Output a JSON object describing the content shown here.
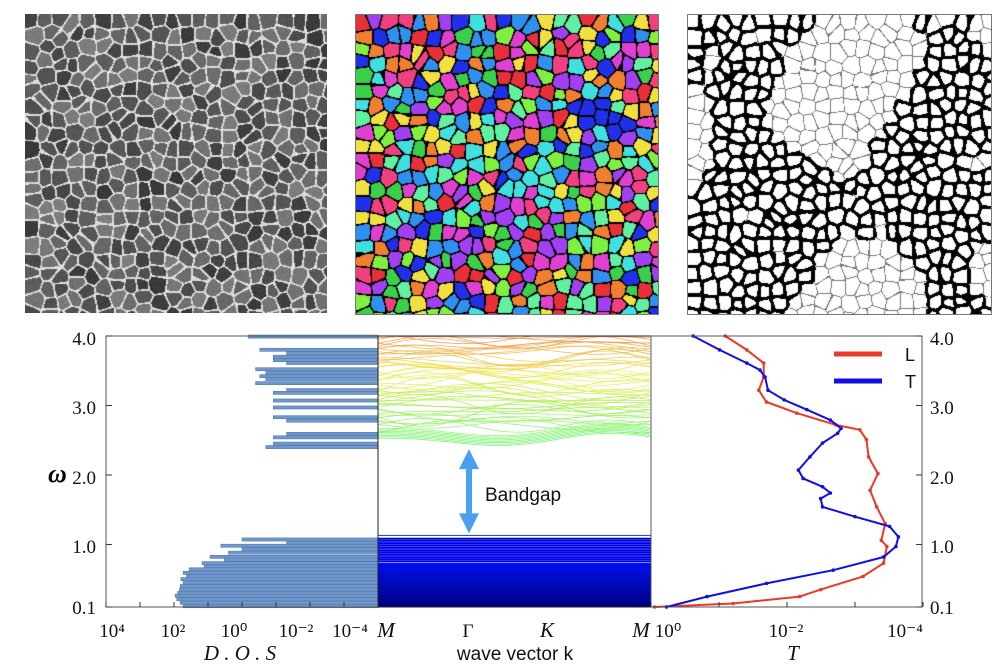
{
  "figure": {
    "y_axis_label": "ω",
    "y_ticks": [
      "4.0",
      "3.0",
      "2.0",
      "1.0",
      "0.1"
    ]
  },
  "chart_data": [
    {
      "type": "bar",
      "orientation": "horizontal",
      "xlabel": "D . O . S",
      "x_scale": "log",
      "xlim": [
        10000,
        0.0001
      ],
      "x_ticks": [
        "10⁴",
        "10²",
        "10⁰",
        "10⁻²",
        "10⁻⁴"
      ],
      "ylabel": "ω",
      "ylim": [
        0.1,
        4.0
      ],
      "bar_color": "#6f97c9",
      "bars": [
        {
          "omega": 3.99,
          "dos": 0.66
        },
        {
          "omega": 3.8,
          "dos": 0.3
        },
        {
          "omega": 3.75,
          "dos": 0.049
        },
        {
          "omega": 3.7,
          "dos": 0.12
        },
        {
          "omega": 3.65,
          "dos": 0.12
        },
        {
          "omega": 3.61,
          "dos": 0.049
        },
        {
          "omega": 3.52,
          "dos": 0.4
        },
        {
          "omega": 3.47,
          "dos": 0.2
        },
        {
          "omega": 3.42,
          "dos": 0.3
        },
        {
          "omega": 3.38,
          "dos": 0.2
        },
        {
          "omega": 3.32,
          "dos": 0.4
        },
        {
          "omega": 3.22,
          "dos": 0.049
        },
        {
          "omega": 3.18,
          "dos": 0.12
        },
        {
          "omega": 3.07,
          "dos": 0.12
        },
        {
          "omega": 2.97,
          "dos": 0.12
        },
        {
          "omega": 2.83,
          "dos": 0.12
        },
        {
          "omega": 2.78,
          "dos": 0.049
        },
        {
          "omega": 2.59,
          "dos": 0.049
        },
        {
          "omega": 2.54,
          "dos": 0.12
        },
        {
          "omega": 2.45,
          "dos": 0.12
        },
        {
          "omega": 2.4,
          "dos": 0.2
        },
        {
          "omega": 1.07,
          "dos": 1.0
        },
        {
          "omega": 1.02,
          "dos": 0.049
        },
        {
          "omega": 0.98,
          "dos": 4.2
        },
        {
          "omega": 0.93,
          "dos": 1.0
        },
        {
          "omega": 0.88,
          "dos": 2.5
        },
        {
          "omega": 0.82,
          "dos": 8.7
        },
        {
          "omega": 0.78,
          "dos": 3.3
        },
        {
          "omega": 0.73,
          "dos": 15
        },
        {
          "omega": 0.68,
          "dos": 13
        },
        {
          "omega": 0.64,
          "dos": 36
        },
        {
          "omega": 0.59,
          "dos": 54
        },
        {
          "omega": 0.54,
          "dos": 43
        },
        {
          "omega": 0.5,
          "dos": 63
        },
        {
          "omega": 0.45,
          "dos": 54
        },
        {
          "omega": 0.4,
          "dos": 66
        },
        {
          "omega": 0.35,
          "dos": 69
        },
        {
          "omega": 0.3,
          "dos": 79
        },
        {
          "omega": 0.26,
          "dos": 93
        },
        {
          "omega": 0.21,
          "dos": 83
        },
        {
          "omega": 0.16,
          "dos": 66
        },
        {
          "omega": 0.11,
          "dos": 54
        }
      ]
    },
    {
      "type": "line",
      "subtype": "band-structure",
      "xlabel": "wave vector k",
      "x_ticks": [
        "M",
        "Γ",
        "K",
        "M"
      ],
      "ylim": [
        0.1,
        4.0
      ],
      "lower_bands_range": [
        0.1,
        1.1
      ],
      "upper_bands_range": [
        2.4,
        4.0
      ],
      "bandgap": [
        1.13,
        2.4
      ],
      "annotation": "Bandgap",
      "arrow_color": "#4a9ff0",
      "lower_color": "#0000e6",
      "upper_colormap": [
        "#8ee89a",
        "#e8f060",
        "#f0a050"
      ]
    },
    {
      "type": "line",
      "xlabel": "T",
      "x_scale": "log",
      "xlim": [
        1,
        0.0001
      ],
      "x_ticks": [
        "10⁰",
        "10⁻²",
        "10⁻⁴"
      ],
      "ylim": [
        0.1,
        4.0
      ],
      "y_ticks_right": [
        "4.0",
        "3.0",
        "2.0",
        "1.0",
        "0.1"
      ],
      "legend": "top-right",
      "series": [
        {
          "name": "L",
          "color": "#e8392b",
          "omega": [
            4.0,
            3.8,
            3.61,
            3.41,
            3.22,
            3.05,
            2.89,
            2.72,
            2.65,
            2.51,
            2.26,
            2.02,
            1.78,
            1.54,
            1.3,
            1.06,
            0.97,
            0.73,
            0.54,
            0.35,
            0.25,
            0.15,
            0.1
          ],
          "T": [
            0.081,
            0.039,
            0.022,
            0.022,
            0.026,
            0.02,
            0.0072,
            0.0019,
            0.00085,
            0.00068,
            0.00063,
            0.00046,
            0.0006,
            0.00048,
            0.00036,
            0.00041,
            0.00034,
            0.00038,
            0.00076,
            0.0032,
            0.0065,
            0.062,
            0.89
          ]
        },
        {
          "name": "T",
          "color": "#1010e0",
          "omega": [
            4.0,
            3.8,
            3.61,
            3.51,
            3.41,
            3.22,
            3.08,
            2.94,
            2.79,
            2.67,
            2.6,
            2.46,
            2.26,
            2.07,
            1.95,
            1.83,
            1.74,
            1.66,
            1.54,
            1.4,
            1.26,
            1.11,
            0.97,
            0.82,
            0.63,
            0.44,
            0.25,
            0.1
          ],
          "T": [
            0.24,
            0.098,
            0.039,
            0.025,
            0.021,
            0.019,
            0.011,
            0.0051,
            0.0023,
            0.0016,
            0.0018,
            0.003,
            0.0046,
            0.0068,
            0.0058,
            0.003,
            0.0023,
            0.0032,
            0.003,
            0.001,
            0.00031,
            0.00023,
            0.00025,
            0.00038,
            0.0021,
            0.02,
            0.15,
            0.59
          ]
        }
      ]
    }
  ]
}
